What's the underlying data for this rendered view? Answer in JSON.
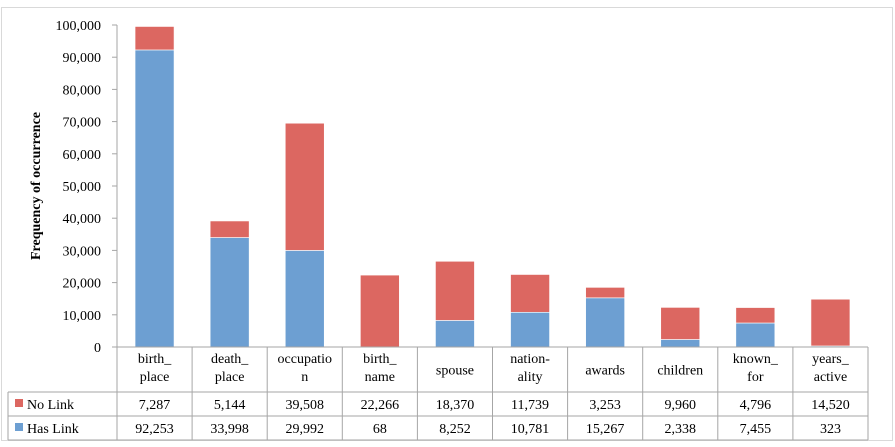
{
  "chart_data": {
    "type": "bar",
    "stacked": true,
    "ylabel": "Frequency of occurrence",
    "ylim": [
      0,
      100000
    ],
    "yticks": [
      "0",
      "10,000",
      "20,000",
      "30,000",
      "40,000",
      "50,000",
      "60,000",
      "70,000",
      "80,000",
      "90,000",
      "100,000"
    ],
    "grid": false,
    "data_table": true,
    "categories": [
      [
        "birth_",
        "place"
      ],
      [
        "death_",
        "place"
      ],
      [
        "occupatio",
        "n"
      ],
      [
        "birth_",
        "name"
      ],
      [
        "spouse"
      ],
      [
        "nation-",
        "ality"
      ],
      [
        "awards"
      ],
      [
        "children"
      ],
      [
        "known_",
        "for"
      ],
      [
        "years_",
        "active"
      ]
    ],
    "series": [
      {
        "name": "Has Link",
        "color": "#6d9fd2",
        "values": [
          92253,
          33998,
          29992,
          68,
          8252,
          10781,
          15267,
          2338,
          7455,
          323
        ],
        "labels": [
          "92,253",
          "33,998",
          "29,992",
          "68",
          "8,252",
          "10,781",
          "15,267",
          "2,338",
          "7,455",
          "323"
        ]
      },
      {
        "name": "No Link",
        "color": "#dc6761",
        "values": [
          7287,
          5144,
          39508,
          22266,
          18370,
          11739,
          3253,
          9960,
          4796,
          14520
        ],
        "labels": [
          "7,287",
          "5,144",
          "39,508",
          "22,266",
          "18,370",
          "11,739",
          "3,253",
          "9,960",
          "4,796",
          "14,520"
        ]
      }
    ],
    "table_row_order": [
      "No Link",
      "Has Link"
    ]
  }
}
